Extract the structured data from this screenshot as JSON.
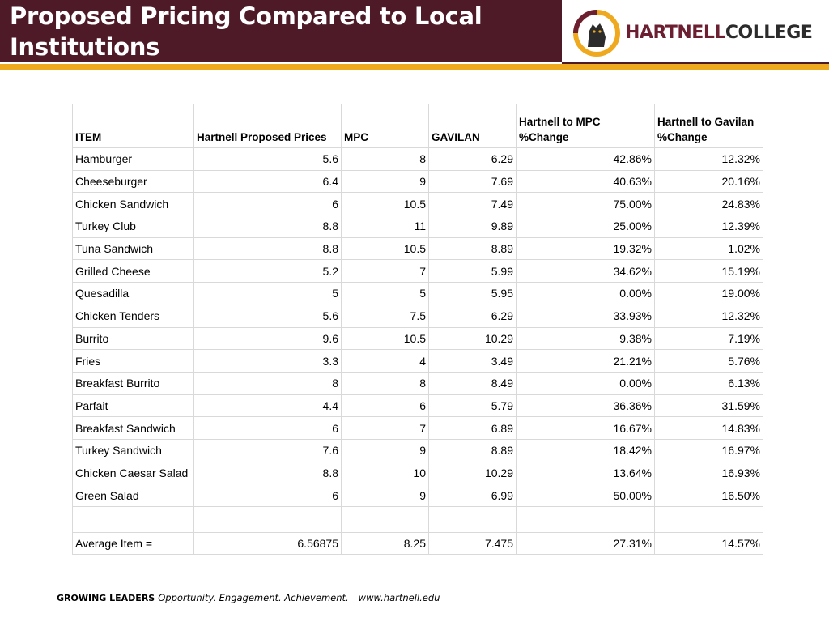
{
  "header": {
    "title": "Proposed Pricing Compared to Local Institutions",
    "logo": {
      "word_primary": "HARTNELL",
      "word_secondary": "COLLEGE",
      "icon": "panther-mascot-icon",
      "colors": {
        "maroon": "#4f1a28",
        "gold": "#efa91f"
      }
    }
  },
  "table": {
    "columns": [
      "ITEM",
      "Hartnell Proposed Prices",
      "MPC",
      "GAVILAN",
      "Hartnell to MPC %Change",
      "Hartnell to Gavilan %Change"
    ],
    "rows": [
      [
        "Hamburger",
        "5.6",
        "8",
        "6.29",
        "42.86%",
        "12.32%"
      ],
      [
        "Cheeseburger",
        "6.4",
        "9",
        "7.69",
        "40.63%",
        "20.16%"
      ],
      [
        "Chicken Sandwich",
        "6",
        "10.5",
        "7.49",
        "75.00%",
        "24.83%"
      ],
      [
        "Turkey Club",
        "8.8",
        "11",
        "9.89",
        "25.00%",
        "12.39%"
      ],
      [
        "Tuna Sandwich",
        "8.8",
        "10.5",
        "8.89",
        "19.32%",
        "1.02%"
      ],
      [
        "Grilled Cheese",
        "5.2",
        "7",
        "5.99",
        "34.62%",
        "15.19%"
      ],
      [
        "Quesadilla",
        "5",
        "5",
        "5.95",
        "0.00%",
        "19.00%"
      ],
      [
        "Chicken Tenders",
        "5.6",
        "7.5",
        "6.29",
        "33.93%",
        "12.32%"
      ],
      [
        "Burrito",
        "9.6",
        "10.5",
        "10.29",
        "9.38%",
        "7.19%"
      ],
      [
        "Fries",
        "3.3",
        "4",
        "3.49",
        "21.21%",
        "5.76%"
      ],
      [
        "Breakfast Burrito",
        "8",
        "8",
        "8.49",
        "0.00%",
        "6.13%"
      ],
      [
        "Parfait",
        "4.4",
        "6",
        "5.79",
        "36.36%",
        "31.59%"
      ],
      [
        "Breakfast Sandwich",
        "6",
        "7",
        "6.89",
        "16.67%",
        "14.83%"
      ],
      [
        "Turkey Sandwich",
        "7.6",
        "9",
        "8.89",
        "18.42%",
        "16.97%"
      ],
      [
        "Chicken Caesar Salad",
        "8.8",
        "10",
        "10.29",
        "13.64%",
        "16.93%"
      ],
      [
        "Green Salad",
        "6",
        "9",
        "6.99",
        "50.00%",
        "16.50%"
      ]
    ],
    "average": [
      "Average Item =",
      "6.56875",
      "8.25",
      "7.475",
      "27.31%",
      "14.57%"
    ]
  },
  "footer": {
    "lead": "GROWING LEADERS",
    "tagline": "Opportunity. Engagement. Achievement.",
    "url": "www.hartnell.edu"
  }
}
